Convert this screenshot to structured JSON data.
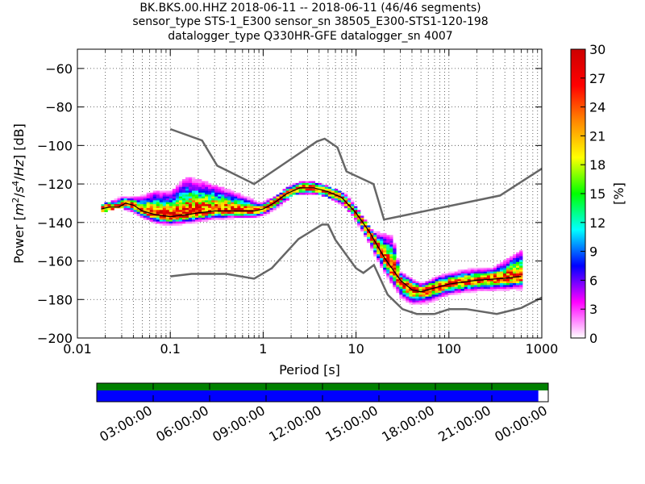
{
  "title_lines": [
    "BK.BKS.00.HHZ   2018-06-11 -- 2018-06-11  (46/46 segments)",
    "sensor_type STS-1_E300 sensor_sn 38505_E300-STS1-120-198",
    "datalogger_type Q330HR-GFE datalogger_sn 4007"
  ],
  "chart_data": {
    "type": "heatmap",
    "xscale": "log",
    "xlim": [
      0.01,
      1000
    ],
    "ylim": [
      -200,
      -50
    ],
    "xlabel": "Period [s]",
    "ylabel": "Power [m²/s⁴/Hz] [dB]",
    "ylabel_parts": [
      "Power [",
      "m",
      "2",
      "/",
      "s",
      "4",
      "/",
      "Hz",
      "] [dB]"
    ],
    "xticks": [
      {
        "v": 0.01,
        "label": "0.01"
      },
      {
        "v": 0.1,
        "label": "0.1"
      },
      {
        "v": 1,
        "label": "1"
      },
      {
        "v": 10,
        "label": "10"
      },
      {
        "v": 100,
        "label": "100"
      },
      {
        "v": 1000,
        "label": "1000"
      }
    ],
    "yticks": [
      -200,
      -180,
      -160,
      -140,
      -120,
      -100,
      -80,
      -60
    ],
    "grid": "dotted",
    "colorbar": {
      "label": "[%]",
      "range": [
        0,
        30
      ],
      "ticks": [
        0,
        3,
        6,
        9,
        12,
        15,
        18,
        21,
        24,
        27,
        30
      ],
      "colors": [
        "#ffffff",
        "#ff00ff",
        "#0000ff",
        "#00ffff",
        "#00ff00",
        "#ffff00",
        "#ff8800",
        "#ff0000",
        "#cc0000"
      ]
    },
    "noise_model_color": "#666666",
    "high_noise_model": [
      [
        0.1,
        -91.5
      ],
      [
        0.22,
        -97.4
      ],
      [
        0.32,
        -110.5
      ],
      [
        0.8,
        -120
      ],
      [
        3.8,
        -97.9
      ],
      [
        4.6,
        -96.5
      ],
      [
        6.3,
        -101
      ],
      [
        7.9,
        -113.5
      ],
      [
        15.4,
        -120
      ],
      [
        20,
        -138.5
      ],
      [
        354.8,
        -126
      ],
      [
        1000,
        -112
      ]
    ],
    "low_noise_model": [
      [
        0.1,
        -168
      ],
      [
        0.17,
        -166.7
      ],
      [
        0.4,
        -166.7
      ],
      [
        0.8,
        -169.2
      ],
      [
        1.24,
        -163.7
      ],
      [
        2.4,
        -148.6
      ],
      [
        4.3,
        -141.1
      ],
      [
        5,
        -141.1
      ],
      [
        6,
        -149
      ],
      [
        10,
        -163.8
      ],
      [
        12,
        -166.2
      ],
      [
        15.6,
        -162.1
      ],
      [
        21.9,
        -177.5
      ],
      [
        31.6,
        -185
      ],
      [
        45,
        -187.5
      ],
      [
        70,
        -187.5
      ],
      [
        101,
        -185
      ],
      [
        154,
        -185
      ],
      [
        328,
        -187.5
      ],
      [
        600,
        -184.4
      ],
      [
        1000,
        -179
      ]
    ],
    "mode_line": [
      [
        0.018,
        -133
      ],
      [
        0.022,
        -132
      ],
      [
        0.028,
        -132
      ],
      [
        0.033,
        -130
      ],
      [
        0.04,
        -131
      ],
      [
        0.05,
        -134
      ],
      [
        0.07,
        -136
      ],
      [
        0.1,
        -137
      ],
      [
        0.15,
        -136
      ],
      [
        0.2,
        -135
      ],
      [
        0.3,
        -134
      ],
      [
        0.5,
        -134
      ],
      [
        0.8,
        -134
      ],
      [
        1.0,
        -133
      ],
      [
        1.3,
        -130
      ],
      [
        1.8,
        -125
      ],
      [
        2.5,
        -122
      ],
      [
        3.5,
        -122
      ],
      [
        5,
        -124
      ],
      [
        7,
        -127
      ],
      [
        10,
        -135
      ],
      [
        14,
        -145
      ],
      [
        20,
        -158
      ],
      [
        30,
        -170
      ],
      [
        40,
        -175
      ],
      [
        50,
        -176
      ],
      [
        70,
        -174
      ],
      [
        100,
        -172
      ],
      [
        200,
        -170
      ],
      [
        400,
        -169
      ],
      [
        600,
        -168
      ]
    ],
    "band_low": [
      [
        0.018,
        -134
      ],
      [
        0.03,
        -131
      ],
      [
        0.05,
        -137
      ],
      [
        0.07,
        -140
      ],
      [
        0.1,
        -141
      ],
      [
        0.15,
        -140
      ],
      [
        0.3,
        -138
      ],
      [
        0.6,
        -137
      ],
      [
        1.0,
        -136
      ],
      [
        1.5,
        -131
      ],
      [
        2.2,
        -124
      ],
      [
        3.5,
        -124
      ],
      [
        5,
        -126
      ],
      [
        8,
        -132
      ],
      [
        12,
        -145
      ],
      [
        20,
        -165
      ],
      [
        30,
        -178
      ],
      [
        40,
        -182
      ],
      [
        60,
        -181
      ],
      [
        100,
        -177
      ],
      [
        200,
        -175
      ],
      [
        600,
        -174
      ]
    ],
    "band_high": [
      [
        0.018,
        -132
      ],
      [
        0.03,
        -127
      ],
      [
        0.05,
        -127
      ],
      [
        0.07,
        -124
      ],
      [
        0.1,
        -125
      ],
      [
        0.15,
        -117
      ],
      [
        0.25,
        -120
      ],
      [
        0.5,
        -125
      ],
      [
        0.9,
        -130
      ],
      [
        1.3,
        -128
      ],
      [
        2.0,
        -121
      ],
      [
        3.0,
        -119
      ],
      [
        5,
        -122
      ],
      [
        8,
        -126
      ],
      [
        12,
        -138
      ],
      [
        15,
        -145
      ],
      [
        25,
        -148
      ],
      [
        30,
        -166
      ],
      [
        50,
        -172
      ],
      [
        80,
        -168
      ],
      [
        150,
        -165
      ],
      [
        300,
        -164
      ],
      [
        600,
        -155
      ]
    ]
  },
  "timeline": {
    "ticks": [
      "03:00:00",
      "06:00:00",
      "09:00:00",
      "12:00:00",
      "15:00:00",
      "18:00:00",
      "21:00:00",
      "00:00:00"
    ],
    "tick_hours": [
      3,
      6,
      9,
      12,
      15,
      18,
      21,
      24
    ],
    "data_fraction": 0.978,
    "colors": {
      "top": "#008000",
      "bottom": "#0000ff"
    }
  }
}
